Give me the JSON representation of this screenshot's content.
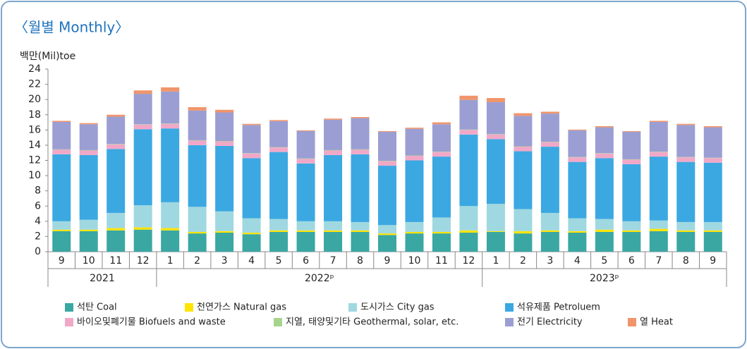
{
  "chart_data": {
    "type": "stacked_bar",
    "title": "〈월별 Monthly〉",
    "y_axis_label": "백만(Mil)toe",
    "groups": [
      {
        "label": "2021",
        "categories": [
          "9",
          "10",
          "11",
          "12"
        ]
      },
      {
        "label": "2022ᵖ",
        "categories": [
          "1",
          "2",
          "3",
          "4",
          "5",
          "6",
          "7",
          "8",
          "9",
          "10",
          "11",
          "12"
        ]
      },
      {
        "label": "2023ᵖ",
        "categories": [
          "1",
          "2",
          "3",
          "4",
          "5",
          "6",
          "7",
          "8",
          "9"
        ]
      }
    ],
    "ylim": [
      0,
      24
    ],
    "yticks": [
      0,
      2,
      4,
      6,
      8,
      10,
      12,
      14,
      16,
      18,
      20,
      22,
      24
    ],
    "series": [
      {
        "name": "석탄 Coal",
        "color": "#3aa7a3",
        "values": [
          2.7,
          2.7,
          2.8,
          2.9,
          2.8,
          2.4,
          2.5,
          2.3,
          2.6,
          2.6,
          2.6,
          2.6,
          2.2,
          2.4,
          2.4,
          2.5,
          2.6,
          2.4,
          2.6,
          2.5,
          2.6,
          2.6,
          2.7,
          2.6,
          2.6
        ]
      },
      {
        "name": "천연가스 Natural gas",
        "color": "#ffe400",
        "values": [
          0.2,
          0.2,
          0.3,
          0.3,
          0.3,
          0.2,
          0.2,
          0.2,
          0.2,
          0.2,
          0.2,
          0.2,
          0.2,
          0.2,
          0.2,
          0.3,
          0.1,
          0.3,
          0.2,
          0.2,
          0.3,
          0.2,
          0.3,
          0.2,
          0.2
        ]
      },
      {
        "name": "도시가스 City gas",
        "color": "#9fd8e0",
        "values": [
          1.1,
          1.3,
          2.0,
          2.9,
          3.4,
          3.3,
          2.6,
          1.9,
          1.5,
          1.2,
          1.2,
          1.1,
          1.1,
          1.3,
          1.9,
          3.2,
          3.6,
          2.9,
          2.3,
          1.7,
          1.4,
          1.2,
          1.1,
          1.1,
          1.1
        ]
      },
      {
        "name": "석유제품 Petroluem",
        "color": "#3ba8e2",
        "values": [
          8.8,
          8.5,
          8.4,
          10.0,
          9.7,
          8.1,
          8.6,
          7.9,
          8.8,
          7.6,
          8.7,
          8.9,
          7.8,
          8.1,
          8.0,
          9.4,
          8.5,
          7.6,
          8.7,
          7.4,
          8.0,
          7.5,
          8.4,
          7.9,
          7.8
        ]
      },
      {
        "name": "바이오및폐기물 Biofuels and waste",
        "color": "#f1a8c8",
        "values": [
          0.6,
          0.6,
          0.6,
          0.6,
          0.6,
          0.6,
          0.6,
          0.6,
          0.6,
          0.6,
          0.6,
          0.6,
          0.6,
          0.6,
          0.6,
          0.6,
          0.6,
          0.6,
          0.6,
          0.6,
          0.6,
          0.6,
          0.6,
          0.6,
          0.6
        ]
      },
      {
        "name": "지열, 태양및기타 Geothermal, solar, etc.",
        "color": "#a6d48c",
        "values": [
          0.05,
          0.05,
          0.05,
          0.05,
          0.05,
          0.05,
          0.05,
          0.05,
          0.05,
          0.05,
          0.05,
          0.05,
          0.05,
          0.05,
          0.05,
          0.05,
          0.05,
          0.05,
          0.05,
          0.05,
          0.05,
          0.05,
          0.05,
          0.05,
          0.05
        ]
      },
      {
        "name": "전기 Electricity",
        "color": "#9b9ed3",
        "values": [
          3.6,
          3.4,
          3.6,
          4.0,
          4.2,
          3.9,
          3.75,
          3.7,
          3.4,
          3.6,
          4.0,
          4.1,
          3.8,
          3.5,
          3.6,
          3.9,
          4.2,
          4.0,
          3.7,
          3.5,
          3.4,
          3.6,
          3.9,
          4.2,
          4.0
        ]
      },
      {
        "name": "열 Heat",
        "color": "#f0956b",
        "values": [
          0.15,
          0.15,
          0.25,
          0.45,
          0.55,
          0.45,
          0.35,
          0.15,
          0.15,
          0.1,
          0.15,
          0.15,
          0.1,
          0.15,
          0.25,
          0.55,
          0.55,
          0.35,
          0.25,
          0.1,
          0.15,
          0.1,
          0.15,
          0.15,
          0.15
        ]
      }
    ]
  }
}
